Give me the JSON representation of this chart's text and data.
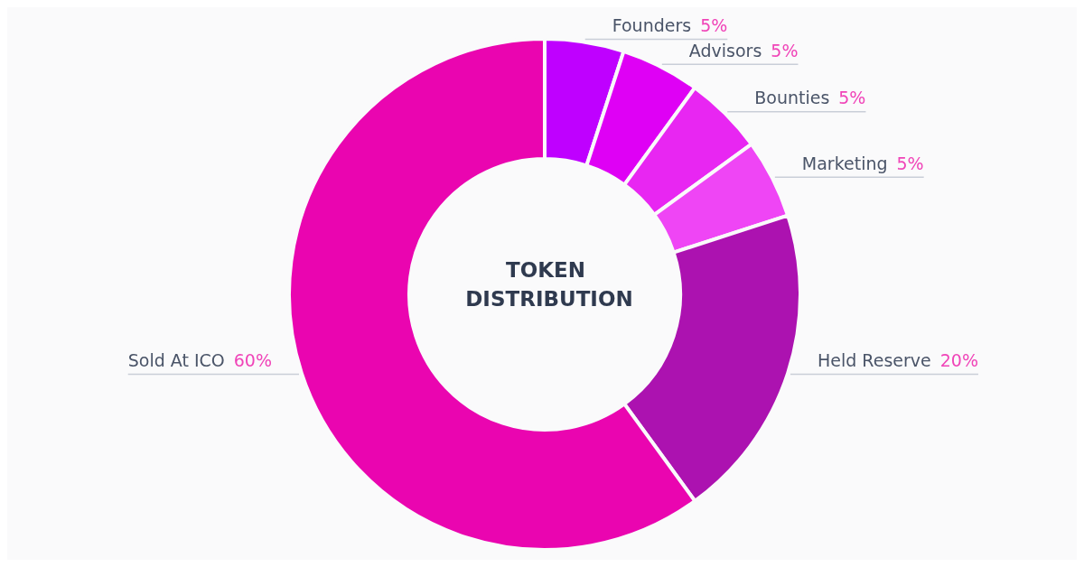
{
  "chart_data": {
    "type": "donut",
    "title": "TOKEN DISTRIBUTION",
    "categories": [
      "Founders",
      "Advisors",
      "Bounties",
      "Marketing",
      "Held Reserve",
      "Sold At ICO"
    ],
    "values": [
      5,
      5,
      5,
      5,
      20,
      60
    ],
    "value_labels": [
      "5%",
      "5%",
      "5%",
      "5%",
      "20%",
      "60%"
    ],
    "colors": [
      "#bf00ff",
      "#df00f5",
      "#e826f2",
      "#ef45f5",
      "#ac12b0",
      "#ea05b0"
    ],
    "legend": false
  }
}
